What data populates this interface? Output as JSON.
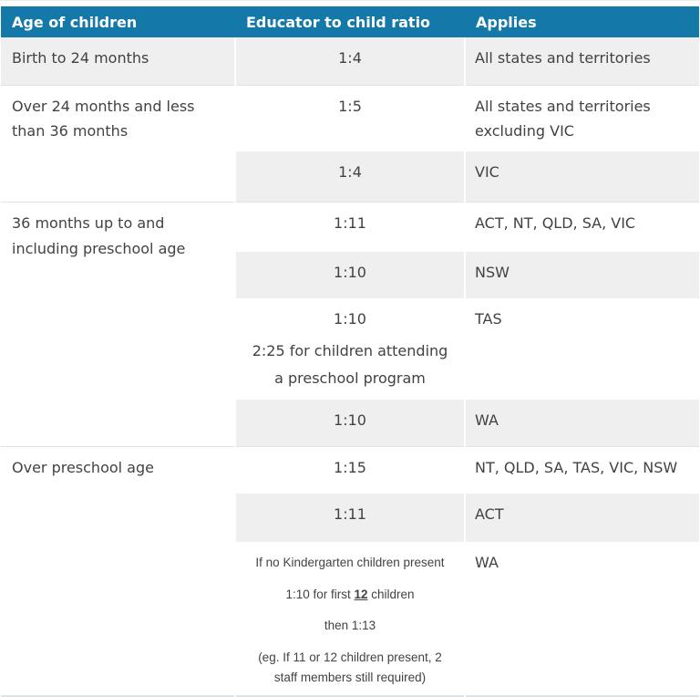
{
  "table": {
    "headers": [
      "Age of children",
      "Educator to child ratio",
      "Applies"
    ],
    "groups": [
      {
        "age": "Birth to 24 months",
        "rows": [
          {
            "ratio": "1:4",
            "applies": "All states and territories"
          }
        ]
      },
      {
        "age": "Over 24 months and less than 36 months",
        "rows": [
          {
            "ratio": "1:5",
            "applies": "All states and territories excluding VIC"
          },
          {
            "ratio": "1:4",
            "applies": "VIC"
          }
        ]
      },
      {
        "age": "36 months up to and including preschool age",
        "rows": [
          {
            "ratio": "1:11",
            "applies": "ACT, NT, QLD, SA, VIC"
          },
          {
            "ratio": "1:10",
            "applies": "NSW"
          },
          {
            "ratio": "1:10",
            "ratio_note": "2:25 for children attending a preschool program",
            "applies": "TAS"
          },
          {
            "ratio": "1:10",
            "applies": "WA"
          }
        ]
      },
      {
        "age": "Over preschool age",
        "rows": [
          {
            "ratio": "1:15",
            "applies": "NT, QLD, SA, TAS, VIC, NSW"
          },
          {
            "ratio": "1:11",
            "applies": "ACT"
          },
          {
            "note": {
              "line1": "If no Kindergarten children present",
              "line2_prefix": "1:10 for first ",
              "line2_em": "12",
              "line2_suffix": " children",
              "line3": "then 1:13",
              "line4": "(eg.  If 11 or 12 children present, 2 staff members still required)"
            },
            "applies": "WA"
          }
        ]
      }
    ],
    "colors": {
      "header_bg": "#1478a8",
      "header_text": "#ffffff",
      "row_shade": "#efefef",
      "body_text": "#434146",
      "group_border": "#e2e2e2"
    }
  }
}
